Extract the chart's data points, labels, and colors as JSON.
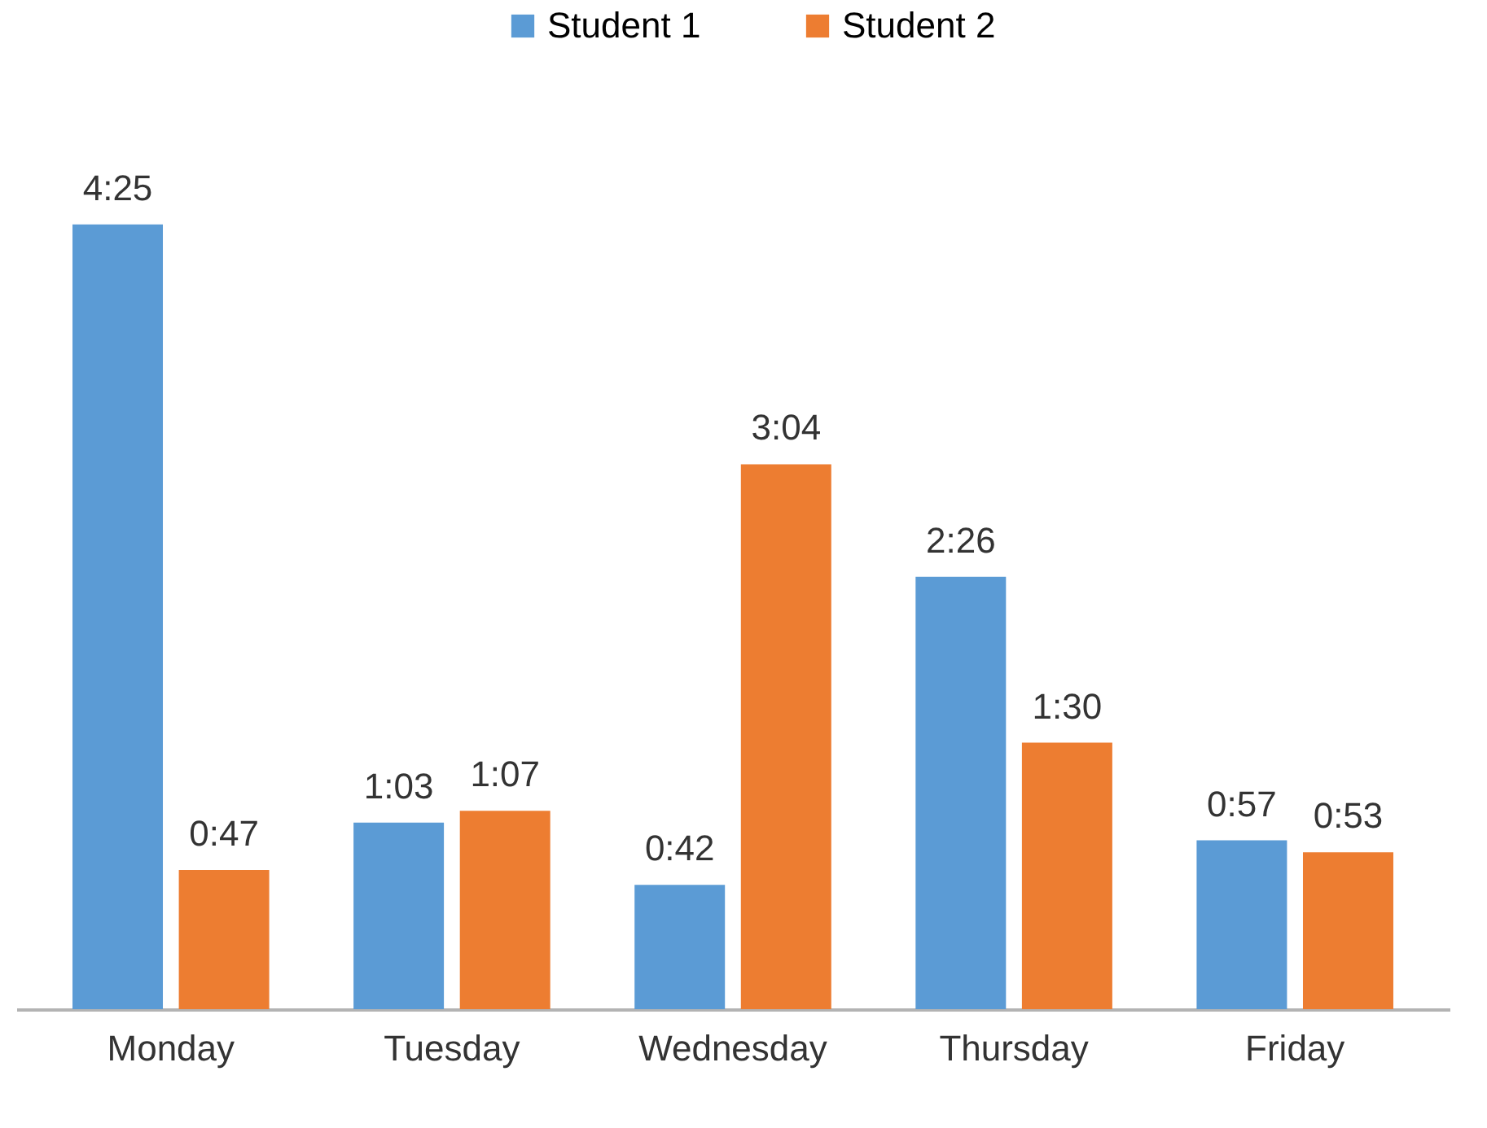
{
  "chart_data": {
    "type": "bar",
    "categories": [
      "Monday",
      "Tuesday",
      "Wednesday",
      "Thursday",
      "Friday"
    ],
    "series": [
      {
        "name": "Student 1",
        "color": "#5b9bd5",
        "values": [
          265,
          63,
          42,
          146,
          57
        ],
        "value_labels": [
          "4:25",
          "1:03",
          "0:42",
          "2:26",
          "0:57"
        ]
      },
      {
        "name": "Student 2",
        "color": "#ed7d31",
        "values": [
          47,
          67,
          184,
          90,
          53
        ],
        "value_labels": [
          "0:47",
          "1:07",
          "3:04",
          "1:30",
          "0:53"
        ]
      }
    ],
    "legend": "top"
  }
}
